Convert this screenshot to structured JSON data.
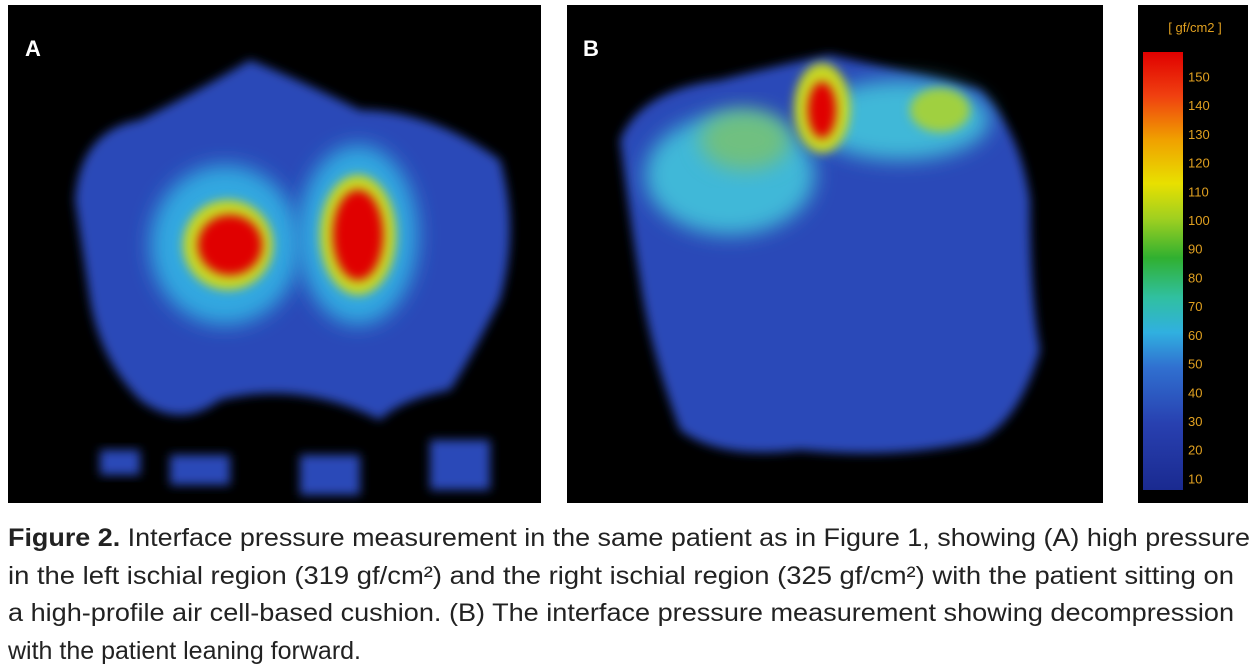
{
  "panels": [
    {
      "label": "A"
    },
    {
      "label": "B"
    }
  ],
  "colorbar": {
    "unit": "[ gf/cm2 ]",
    "ticks": [
      150,
      140,
      130,
      120,
      110,
      100,
      90,
      80,
      70,
      60,
      50,
      40,
      30,
      20,
      10
    ]
  },
  "caption": {
    "label": "Figure 2.",
    "lines": [
      "Interface pressure measurement in the same patient as in Figure 1, showing (A) high pressure",
      "in the left ischial region (319 gf/cm²) and the right ischial region (325 gf/cm²) with the patient sitting on",
      "a high-profile air cell-based cushion. (B) The interface pressure measurement showing decompression",
      "with the patient leaning forward."
    ]
  }
}
